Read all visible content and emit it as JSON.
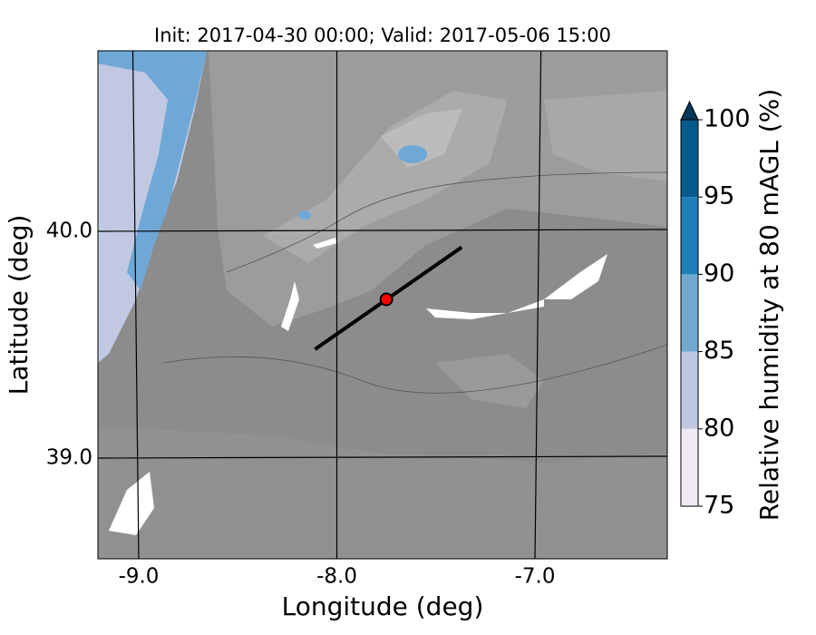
{
  "map": {
    "title": "Init: 2017-04-30 00:00; Valid: 2017-05-06 15:00",
    "xlabel": "Longitude (deg)",
    "ylabel": "Latitude (deg)",
    "xlim": [
      -9.206,
      -6.332
    ],
    "ylim": [
      38.556,
      40.796
    ],
    "xticks": [
      {
        "value": -9,
        "label": "-9.0"
      },
      {
        "value": -8,
        "label": "-8.0"
      },
      {
        "value": -7,
        "label": "-7.0"
      }
    ],
    "yticks": [
      {
        "value": 39,
        "label": "39.0"
      },
      {
        "value": 40,
        "label": "40.0"
      }
    ],
    "colorbar": {
      "label": "Relative humidity at 80 mAGL (%)",
      "levels": [
        75,
        80,
        85,
        90,
        95,
        100
      ],
      "colors": [
        "#efeaf4",
        "#bfc8e2",
        "#73a9cf",
        "#1f7fb8",
        "#045a8d"
      ],
      "extend_color": "#023858"
    },
    "marker": {
      "lon": -7.75,
      "lat": 39.7,
      "color": "#ff0000"
    },
    "transect": {
      "lon": [
        -8.11,
        -7.37
      ],
      "lat": [
        39.48,
        39.93
      ],
      "color": "#000000"
    }
  }
}
